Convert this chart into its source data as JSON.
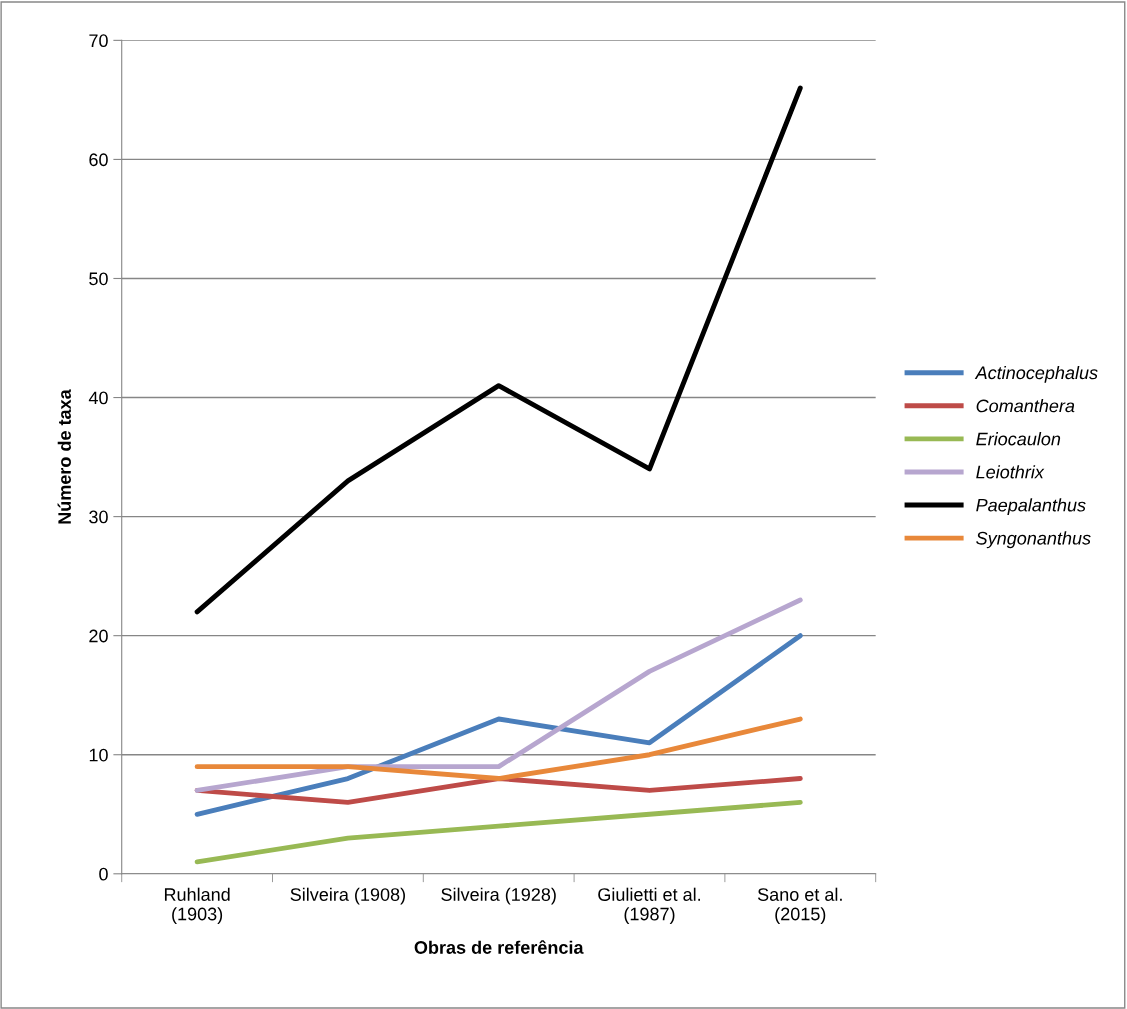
{
  "chart_data": {
    "type": "line",
    "xlabel": "Obras de referência",
    "ylabel": "Número de taxa",
    "categories": [
      "Ruhland\n(1903)",
      "Silveira (1908)",
      "Silveira (1928)",
      "Giulietti et al.\n(1987)",
      "Sano et al.\n(2015)"
    ],
    "series": [
      {
        "name": "Actinocephalus",
        "color": "#4a7ebb",
        "values": [
          5,
          8,
          13,
          11,
          20
        ]
      },
      {
        "name": "Comanthera",
        "color": "#be4b48",
        "values": [
          7,
          6,
          8,
          7,
          8
        ]
      },
      {
        "name": "Eriocaulon",
        "color": "#98b954",
        "values": [
          1,
          3,
          4,
          5,
          6
        ]
      },
      {
        "name": "Leiothrix",
        "color": "#b7a6cf",
        "values": [
          7,
          9,
          9,
          17,
          23
        ]
      },
      {
        "name": "Paepalanthus",
        "color": "#000000",
        "values": [
          22,
          33,
          41,
          34,
          66
        ]
      },
      {
        "name": "Syngonanthus",
        "color": "#e8883a",
        "values": [
          9,
          9,
          8,
          10,
          13
        ]
      }
    ],
    "ylim": [
      0,
      70
    ],
    "yticks": [
      0,
      10,
      20,
      30,
      40,
      50,
      60,
      70
    ],
    "grid": "y",
    "legend": "right",
    "marker": "none",
    "line_style": "solid"
  }
}
